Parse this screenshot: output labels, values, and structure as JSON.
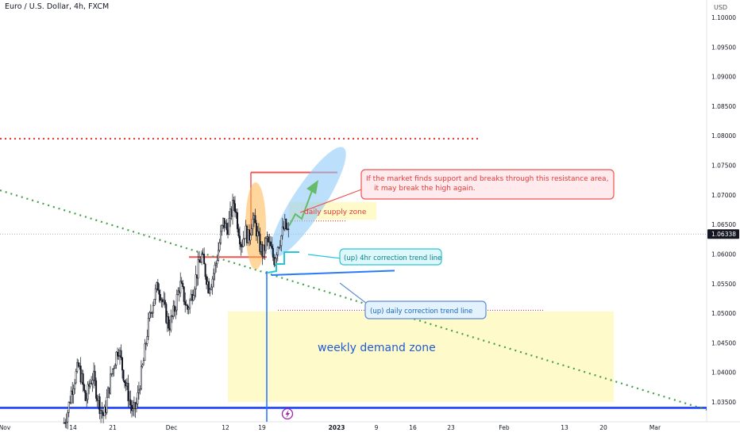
{
  "chart_data": {
    "type": "candlestick",
    "title": "Euro / U.S. Dollar, 4h, FXCM",
    "currency": "USD",
    "last_price": "1.06338",
    "y_ticks": [
      "1.10000",
      "1.09500",
      "1.09000",
      "1.08500",
      "1.08000",
      "1.07500",
      "1.07000",
      "1.06500",
      "1.06000",
      "1.05500",
      "1.05000",
      "1.04500",
      "1.04000",
      "1.03500"
    ],
    "x_ticks": [
      "Nov",
      "14",
      "21",
      "Dec",
      "12",
      "19",
      "2023",
      "9",
      "16",
      "23",
      "Feb",
      "13",
      "20",
      "Mar"
    ],
    "ylim": [
      1.0325,
      1.1065
    ],
    "close_path": [
      [
        0,
        1.0315
      ],
      [
        1,
        1.0335
      ],
      [
        2,
        1.0368
      ],
      [
        3,
        1.0392
      ],
      [
        4,
        1.041
      ],
      [
        5,
        1.0385
      ],
      [
        6,
        1.035
      ],
      [
        7,
        1.038
      ],
      [
        8,
        1.0395
      ],
      [
        9,
        1.0365
      ],
      [
        10,
        1.034
      ],
      [
        11,
        1.0325
      ],
      [
        12,
        1.036
      ],
      [
        13,
        1.0395
      ],
      [
        14,
        1.042
      ],
      [
        15,
        1.0445
      ],
      [
        16,
        1.041
      ],
      [
        17,
        1.038
      ],
      [
        18,
        1.0355
      ],
      [
        19,
        1.033
      ],
      [
        20,
        1.0345
      ],
      [
        21,
        1.0385
      ],
      [
        22,
        1.042
      ],
      [
        23,
        1.047
      ],
      [
        24,
        1.0505
      ],
      [
        25,
        1.053
      ],
      [
        26,
        1.0548
      ],
      [
        27,
        1.0525
      ],
      [
        28,
        1.05
      ],
      [
        29,
        1.0478
      ],
      [
        30,
        1.0495
      ],
      [
        31,
        1.052
      ],
      [
        32,
        1.055
      ],
      [
        33,
        1.053
      ],
      [
        34,
        1.0505
      ],
      [
        35,
        1.0525
      ],
      [
        36,
        1.055
      ],
      [
        37,
        1.0575
      ],
      [
        38,
        1.0598
      ],
      [
        39,
        1.057
      ],
      [
        40,
        1.0545
      ],
      [
        41,
        1.056
      ],
      [
        42,
        1.0585
      ],
      [
        43,
        1.062
      ],
      [
        44,
        1.0655
      ],
      [
        45,
        1.064
      ],
      [
        46,
        1.0665
      ],
      [
        47,
        1.069
      ],
      [
        48,
        1.065
      ],
      [
        49,
        1.0615
      ],
      [
        50,
        1.064
      ],
      [
        51,
        1.0625
      ],
      [
        52,
        1.066
      ],
      [
        53,
        1.0645
      ],
      [
        54,
        1.0615
      ],
      [
        55,
        1.06
      ],
      [
        56,
        1.0625
      ],
      [
        57,
        1.061
      ],
      [
        58,
        1.059
      ],
      [
        59,
        1.0615
      ],
      [
        60,
        1.063
      ],
      [
        61,
        1.0648
      ],
      [
        62,
        1.0634
      ]
    ],
    "levels": [
      {
        "name": "high-resistance",
        "price": 1.0738,
        "style": "solid",
        "color": "#ef5350"
      },
      {
        "name": "top-dotted-resistance",
        "price": 1.0795,
        "style": "dotted",
        "color": "#e53935"
      },
      {
        "name": "support-line",
        "price": 1.0595,
        "style": "solid",
        "color": "#ef5350"
      },
      {
        "name": "weekly-low-line",
        "price": 1.034,
        "style": "solid",
        "color": "#1e40ff"
      }
    ],
    "zones": [
      {
        "name": "daily-supply-zone",
        "label": "daily supply zone",
        "from_price": 1.0658,
        "to_price": 1.0688
      },
      {
        "name": "weekly-demand-zone",
        "label": "weekly demand zone",
        "from_price": 1.035,
        "to_price": 1.0503
      }
    ],
    "annotations": [
      {
        "name": "breakout-note",
        "text": "If the market finds support and breaks through this resistance area, it may break the high again.",
        "lines": [
          "If the market finds support and breaks through this resistance area,",
          "it may break the high again."
        ]
      },
      {
        "name": "4hr-trend-note",
        "text": "(up) 4hr correction trend line"
      },
      {
        "name": "daily-trend-note",
        "text": "(up) daily correction trend line"
      }
    ],
    "colors": {
      "bull": "#26a69a",
      "bear": "#131722",
      "accent": "#2962ff",
      "supply": "#fff9c4",
      "demand": "#fff9c4"
    }
  }
}
